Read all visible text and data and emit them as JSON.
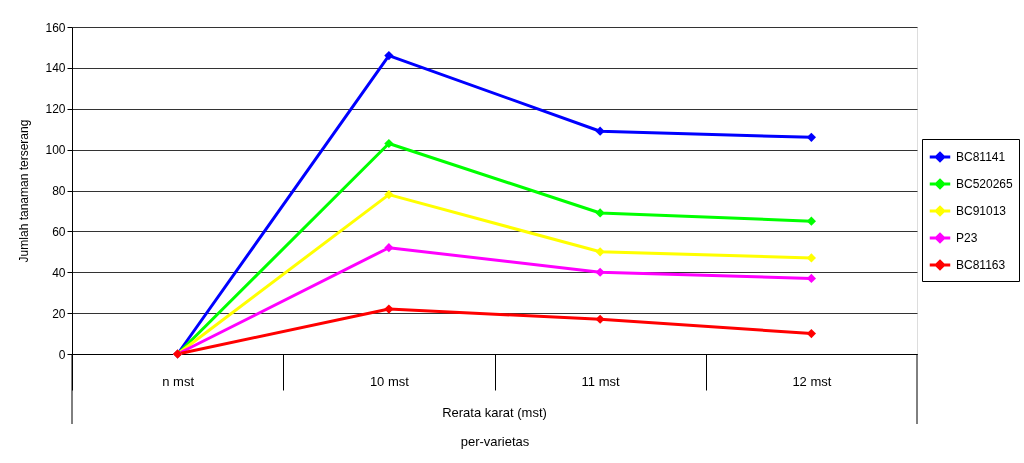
{
  "chart_data": {
    "type": "line",
    "categories": [
      "n mst",
      "10 mst",
      "11 mst",
      "12 mst"
    ],
    "xlabel": "per-varietas",
    "ylabel": "Jumlah tanaman terserang",
    "annotations": [
      "Rerata karat (mst)"
    ],
    "ylim": [
      0,
      160
    ],
    "yticks": [
      0,
      20,
      40,
      60,
      80,
      100,
      120,
      140,
      160
    ],
    "grid": "y",
    "legend": "right",
    "marker": "diamond",
    "line_style": "solid",
    "series": [
      {
        "name": "BC81141",
        "color": "#0000ff",
        "values": [
          0,
          146,
          109,
          106
        ]
      },
      {
        "name": "BC520265",
        "color": "#00ff00",
        "values": [
          0,
          103,
          69,
          65
        ]
      },
      {
        "name": "BC91013",
        "color": "#ffff00",
        "values": [
          0,
          78,
          50,
          47
        ]
      },
      {
        "name": "P23",
        "color": "#ff00ff",
        "values": [
          0,
          52,
          40,
          37
        ]
      },
      {
        "name": "BC81163",
        "color": "#ff0000",
        "values": [
          0,
          22,
          17,
          10
        ]
      }
    ]
  }
}
